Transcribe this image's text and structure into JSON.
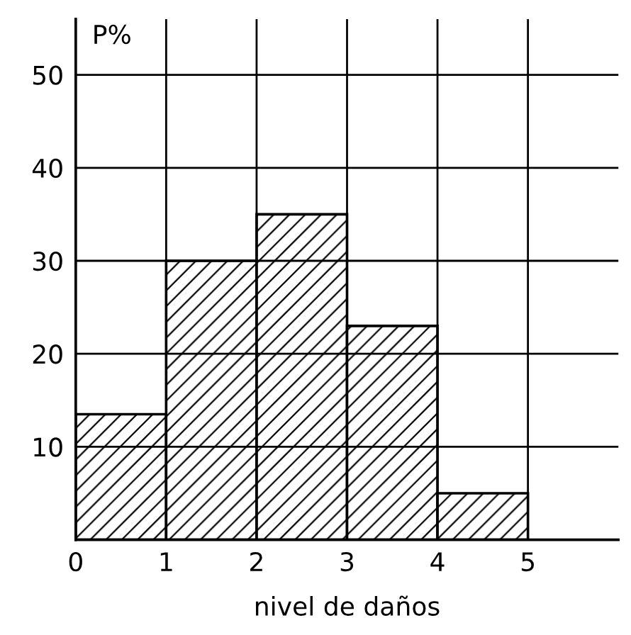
{
  "chart_data": {
    "type": "histogram",
    "xlabel": "nivel de daños",
    "ylabel": "P%",
    "bins": [
      0,
      1,
      2,
      3,
      4,
      5
    ],
    "values": [
      13.5,
      30,
      35,
      23,
      5
    ],
    "color": "#000000",
    "xlim": [
      0,
      6
    ],
    "xticks": [
      0,
      1,
      2,
      3,
      4,
      5
    ],
    "ylim": [
      0,
      56
    ],
    "yticks": [
      {
        "value": 0,
        "label": null
      },
      10,
      20,
      30,
      40,
      50
    ],
    "grid": true
  }
}
